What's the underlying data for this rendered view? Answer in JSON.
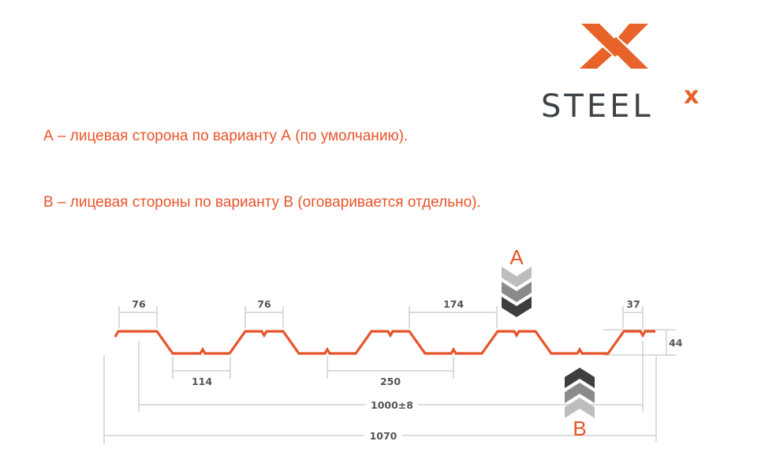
{
  "logo": {
    "text": "STEEL",
    "superscript": "x",
    "brand_color": "#e8632a",
    "text_color": "#3d4348"
  },
  "notes": [
    "А – лицевая сторона по варианту А (по умолчанию).",
    "В – лицевая стороны по варианту В (оговаривается отдельно)."
  ],
  "diagram": {
    "profile_color": "#e8542a",
    "side_a_label": "A",
    "side_b_label": "B",
    "dimensions": {
      "top_width_1": "76",
      "top_width_2": "76",
      "bottom_width": "114",
      "pitch": "250",
      "top_gap": "174",
      "edge": "37",
      "height": "44",
      "useful_width": "1000±8",
      "total_width": "1070"
    }
  }
}
